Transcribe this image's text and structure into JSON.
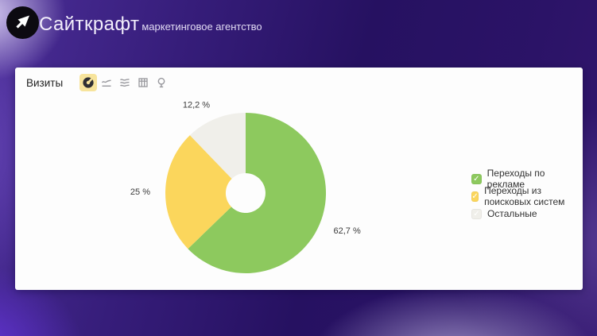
{
  "header": {
    "brand": "Сайткрафт",
    "tagline": "маркетинговое агентство"
  },
  "panel": {
    "title": "Визиты",
    "toolbar": [
      {
        "id": "pie-chart",
        "selected": true
      },
      {
        "id": "line-chart",
        "selected": false
      },
      {
        "id": "stacked-area-chart",
        "selected": false
      },
      {
        "id": "table-view",
        "selected": false
      },
      {
        "id": "map-view",
        "selected": false
      }
    ],
    "selected_tool_bg": "#F7E49C"
  },
  "chart_data": {
    "type": "pie",
    "donut": true,
    "title": "Визиты",
    "legend_position": "right",
    "direction": "clockwise",
    "start_angle_deg": 0,
    "slices": [
      {
        "label": "Переходы по рекламе",
        "value": 62.7,
        "display": "62,7 %",
        "color": "#8DC95E"
      },
      {
        "label": "Переходы из поисковых систем",
        "value": 25,
        "display": "25 %",
        "color": "#FBD65C"
      },
      {
        "label": "Остальные",
        "value": 12.2,
        "display": "12,2 %",
        "color": "#F0EFEA"
      }
    ]
  },
  "colors": {
    "card_bg": "#fdfdfd",
    "label_color": "#3a3a3a",
    "background_purple": "#2b1367"
  }
}
